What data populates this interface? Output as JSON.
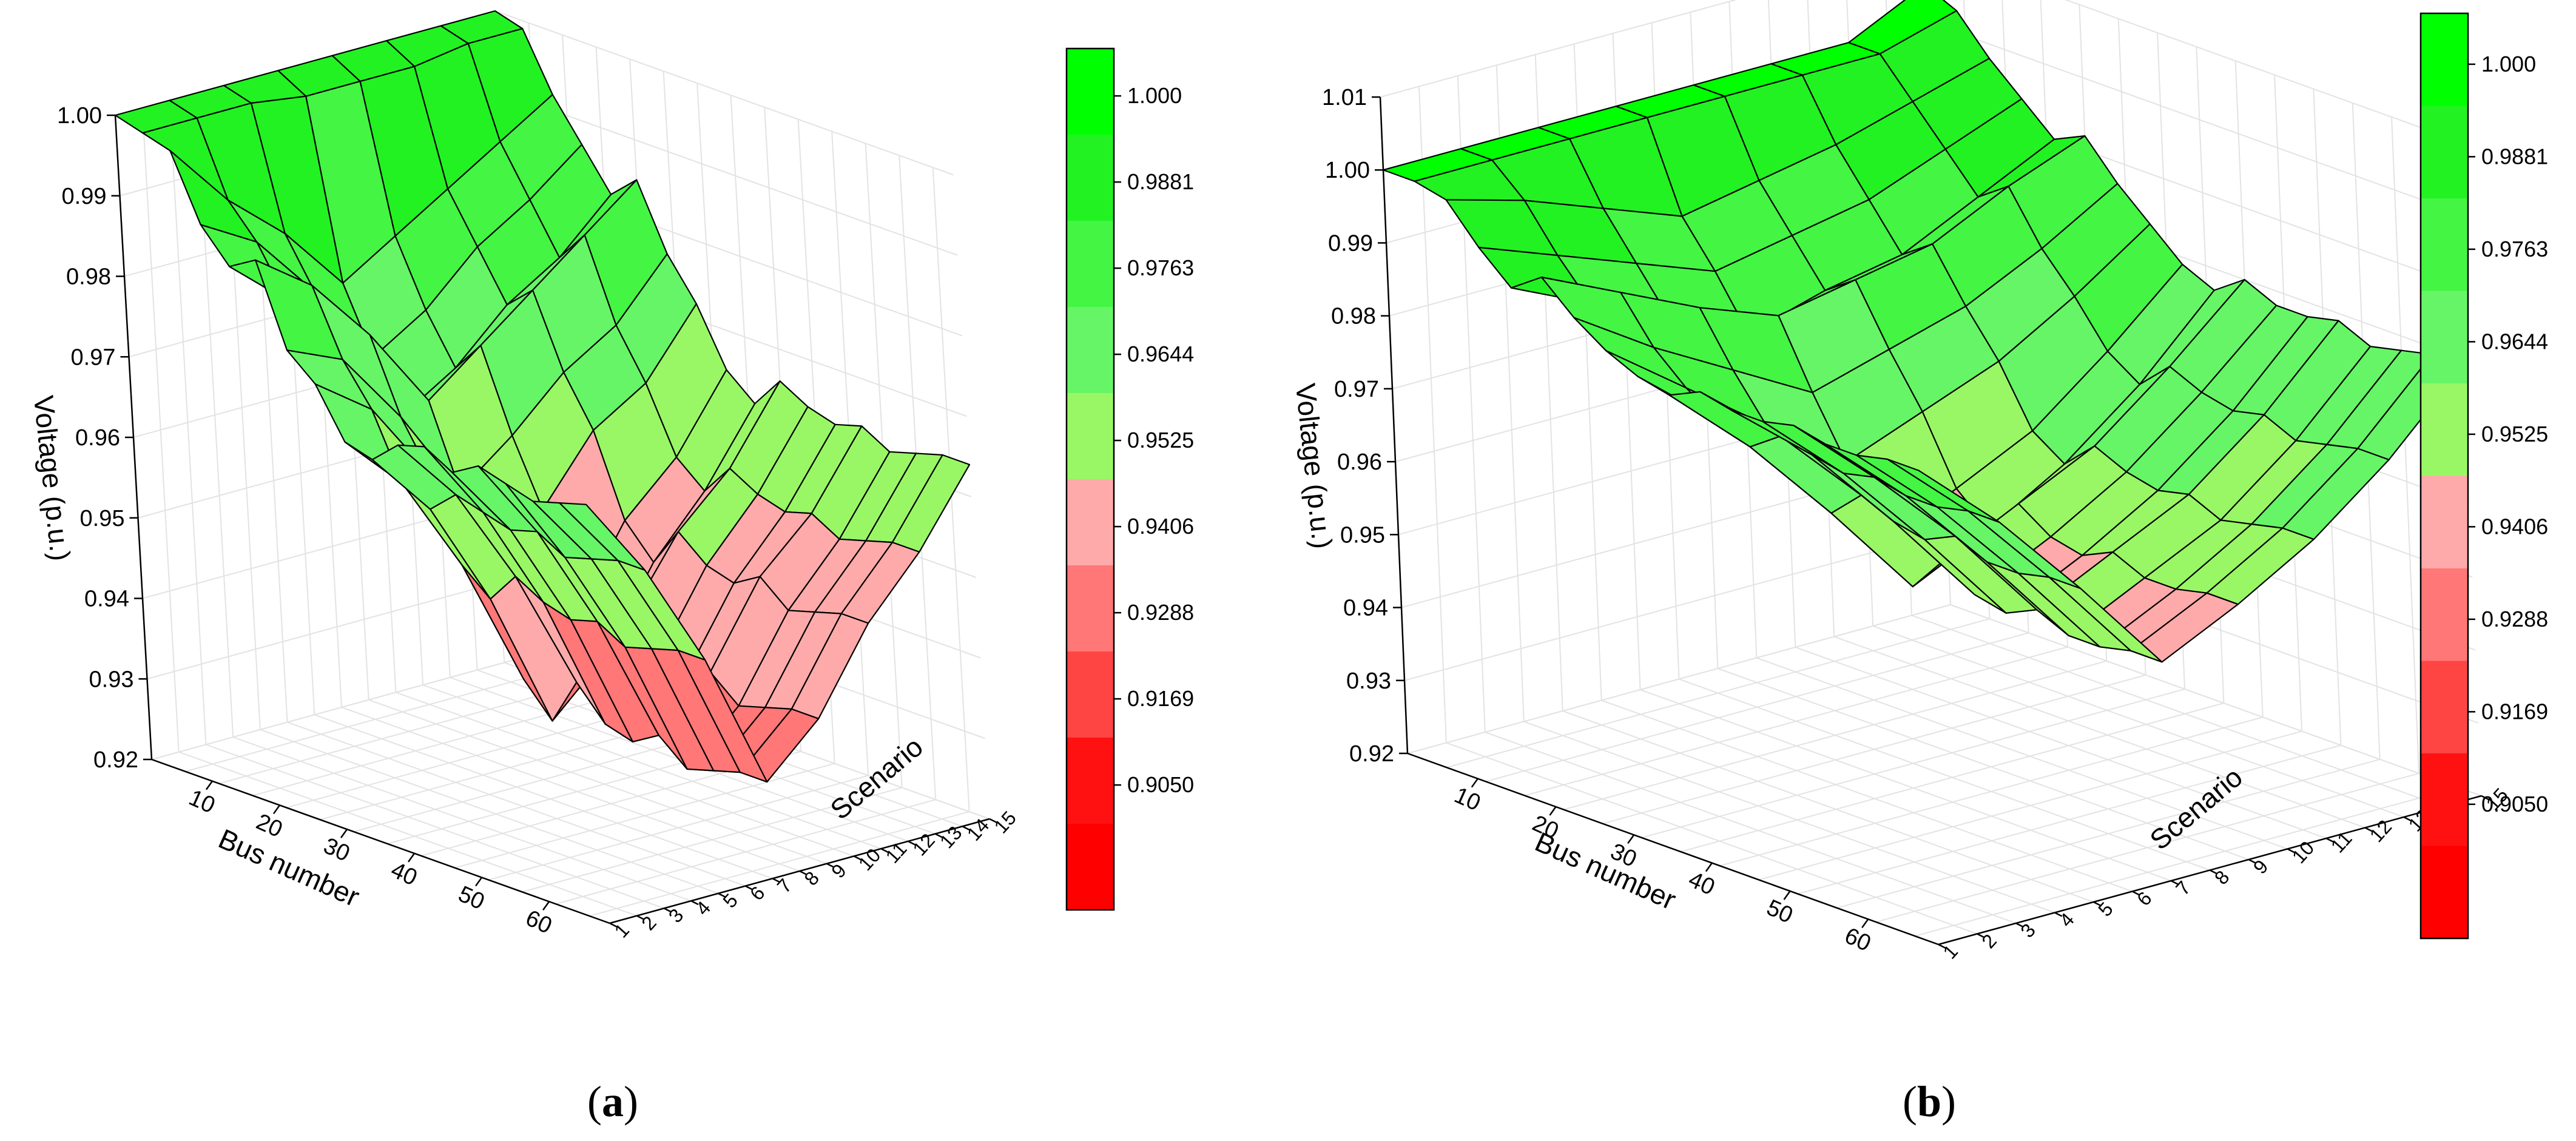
{
  "colorbar": {
    "levels": [
      "1.000",
      "0.9881",
      "0.9763",
      "0.9644",
      "0.9525",
      "0.9406",
      "0.9288",
      "0.9169",
      "0.9050"
    ],
    "colors": [
      "#00ff00",
      "#22f222",
      "#44f544",
      "#66f566",
      "#99f766",
      "#ffaaaa",
      "#ff7777",
      "#ff4444",
      "#ff1111",
      "#ff0000"
    ]
  },
  "chart_data": [
    {
      "type": "surface",
      "panel_label": "a",
      "zlabel": "Voltage (p.u.)",
      "xlabel": "Bus number",
      "ylabel": "Scenario",
      "zlim": [
        0.92,
        1.0
      ],
      "z_ticks": [
        "0.92",
        "0.93",
        "0.94",
        "0.95",
        "0.96",
        "0.97",
        "0.98",
        "0.99",
        "1.00"
      ],
      "x_ticks": [
        "10",
        "20",
        "30",
        "40",
        "50",
        "60"
      ],
      "y_ticks": [
        "1",
        "2",
        "3",
        "4",
        "5",
        "6",
        "7",
        "8",
        "9",
        "10",
        "11",
        "12",
        "13",
        "14",
        "15"
      ],
      "buses": 69,
      "scenarios": 15,
      "x": [
        1,
        5,
        9,
        13,
        17,
        21,
        25,
        29,
        33,
        37,
        41,
        45,
        49,
        53,
        57,
        61,
        65,
        69
      ],
      "series": [
        {
          "scenario": 1,
          "values": [
            1.0,
            0.999,
            0.998,
            0.99,
            0.986,
            0.988,
            0.978,
            0.975,
            0.969,
            0.968,
            0.971,
            0.972,
            0.97,
            0.972,
            0.971,
            0.97,
            0.971,
            0.972
          ]
        },
        {
          "scenario": 3,
          "values": [
            1.0,
            0.999,
            0.99,
            0.986,
            0.98,
            0.983,
            0.975,
            0.97,
            0.962,
            0.96,
            0.963,
            0.962,
            0.961,
            0.962,
            0.96,
            0.961,
            0.962,
            0.962
          ]
        },
        {
          "scenario": 5,
          "values": [
            1.0,
            0.999,
            0.984,
            0.978,
            0.972,
            0.975,
            0.966,
            0.96,
            0.95,
            0.947,
            0.951,
            0.949,
            0.948,
            0.949,
            0.947,
            0.948,
            0.949,
            0.949
          ]
        },
        {
          "scenario": 7,
          "values": [
            1.0,
            0.998,
            0.976,
            0.968,
            0.962,
            0.965,
            0.955,
            0.947,
            0.934,
            0.93,
            0.936,
            0.932,
            0.931,
            0.933,
            0.93,
            0.931,
            0.932,
            0.932
          ]
        },
        {
          "scenario": 9,
          "values": [
            1.0,
            0.998,
            0.98,
            0.972,
            0.966,
            0.97,
            0.96,
            0.952,
            0.94,
            0.936,
            0.942,
            0.938,
            0.937,
            0.939,
            0.936,
            0.937,
            0.938,
            0.938
          ]
        },
        {
          "scenario": 11,
          "values": [
            1.0,
            0.998,
            0.984,
            0.978,
            0.972,
            0.975,
            0.966,
            0.96,
            0.95,
            0.946,
            0.951,
            0.948,
            0.947,
            0.949,
            0.946,
            0.947,
            0.948,
            0.948
          ]
        },
        {
          "scenario": 13,
          "values": [
            1.0,
            0.999,
            0.988,
            0.982,
            0.976,
            0.98,
            0.97,
            0.964,
            0.956,
            0.953,
            0.957,
            0.955,
            0.954,
            0.955,
            0.953,
            0.954,
            0.955,
            0.955
          ]
        },
        {
          "scenario": 15,
          "values": [
            1.0,
            0.999,
            0.992,
            0.987,
            0.982,
            0.985,
            0.977,
            0.972,
            0.965,
            0.962,
            0.966,
            0.964,
            0.963,
            0.964,
            0.962,
            0.963,
            0.964,
            0.964
          ]
        }
      ]
    },
    {
      "type": "surface",
      "panel_label": "b",
      "zlabel": "Voltage (p.u.)",
      "xlabel": "Bus number",
      "ylabel": "Scenario",
      "zlim": [
        0.92,
        1.01
      ],
      "z_ticks": [
        "0.92",
        "0.93",
        "0.94",
        "0.95",
        "0.96",
        "0.97",
        "0.98",
        "0.99",
        "1.00",
        "1.01"
      ],
      "x_ticks": [
        "10",
        "20",
        "30",
        "40",
        "50",
        "60"
      ],
      "y_ticks": [
        "1",
        "2",
        "3",
        "4",
        "5",
        "6",
        "7",
        "8",
        "9",
        "10",
        "11",
        "12",
        "13",
        "14",
        "15"
      ],
      "buses": 69,
      "scenarios": 15,
      "x": [
        1,
        5,
        9,
        13,
        17,
        21,
        25,
        29,
        33,
        37,
        41,
        45,
        49,
        53,
        57,
        61,
        65,
        69
      ],
      "series": [
        {
          "scenario": 1,
          "values": [
            1.0,
            1.0,
            0.999,
            0.994,
            0.99,
            0.993,
            0.989,
            0.986,
            0.984,
            0.983,
            0.985,
            0.984,
            0.984,
            0.985,
            0.984,
            0.984,
            0.985,
            0.985
          ]
        },
        {
          "scenario": 3,
          "values": [
            1.0,
            1.0,
            0.996,
            0.99,
            0.985,
            0.988,
            0.982,
            0.978,
            0.975,
            0.973,
            0.976,
            0.975,
            0.974,
            0.975,
            0.974,
            0.974,
            0.975,
            0.975
          ]
        },
        {
          "scenario": 5,
          "values": [
            1.0,
            1.0,
            0.992,
            0.986,
            0.98,
            0.983,
            0.976,
            0.97,
            0.964,
            0.961,
            0.965,
            0.963,
            0.962,
            0.964,
            0.962,
            0.962,
            0.963,
            0.963
          ]
        },
        {
          "scenario": 7,
          "values": [
            1.0,
            1.0,
            0.988,
            0.982,
            0.975,
            0.979,
            0.97,
            0.962,
            0.952,
            0.948,
            0.953,
            0.95,
            0.949,
            0.951,
            0.949,
            0.949,
            0.95,
            0.95
          ]
        },
        {
          "scenario": 9,
          "values": [
            1.0,
            1.0,
            0.99,
            0.984,
            0.978,
            0.981,
            0.973,
            0.966,
            0.957,
            0.953,
            0.958,
            0.955,
            0.954,
            0.956,
            0.954,
            0.954,
            0.955,
            0.955
          ]
        },
        {
          "scenario": 11,
          "values": [
            1.0,
            1.0,
            0.992,
            0.986,
            0.98,
            0.983,
            0.976,
            0.97,
            0.962,
            0.959,
            0.963,
            0.961,
            0.96,
            0.961,
            0.959,
            0.96,
            0.961,
            0.961
          ]
        },
        {
          "scenario": 13,
          "values": [
            1.0,
            1.0,
            0.995,
            0.99,
            0.985,
            0.988,
            0.981,
            0.976,
            0.97,
            0.967,
            0.971,
            0.969,
            0.968,
            0.969,
            0.967,
            0.968,
            0.969,
            0.969
          ]
        },
        {
          "scenario": 15,
          "values": [
            1.005,
            1.003,
            0.998,
            0.994,
            0.99,
            0.992,
            0.987,
            0.983,
            0.979,
            0.977,
            0.98,
            0.978,
            0.978,
            0.979,
            0.977,
            0.978,
            0.979,
            0.979
          ]
        }
      ]
    }
  ]
}
